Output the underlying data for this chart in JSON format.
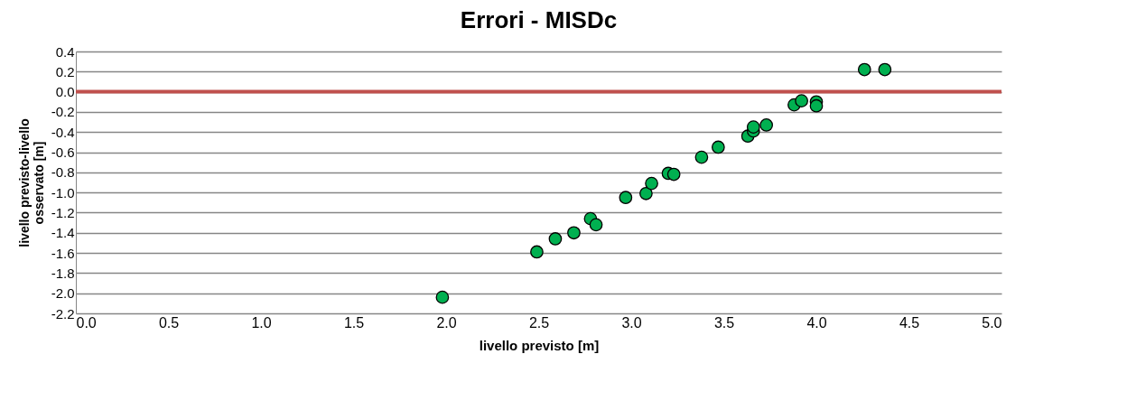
{
  "chart_data": {
    "type": "scatter",
    "title": "Errori - MISDc",
    "xlabel": "livello previsto [m]",
    "ylabel": "livello previsto-livello osservato [m]",
    "x": [
      1.98,
      2.49,
      2.59,
      2.69,
      2.78,
      2.81,
      2.97,
      3.08,
      3.11,
      3.2,
      3.23,
      3.38,
      3.47,
      3.63,
      3.66,
      3.66,
      3.73,
      3.88,
      3.92,
      4.0,
      4.0,
      4.26,
      4.37
    ],
    "series": [
      {
        "color": "#00b050",
        "values": [
          -2.04,
          -1.59,
          -1.46,
          -1.4,
          -1.26,
          -1.32,
          -1.05,
          -1.01,
          -0.91,
          -0.81,
          -0.82,
          -0.65,
          -0.55,
          -0.44,
          -0.39,
          -0.35,
          -0.33,
          -0.13,
          -0.09,
          -0.1,
          -0.14,
          0.22,
          0.22
        ]
      }
    ],
    "xlim": [
      0,
      5
    ],
    "xticks": [
      {
        "value": 0,
        "label": "0.0"
      },
      {
        "value": 0.5,
        "label": "0.5"
      },
      {
        "value": 1,
        "label": "1.0"
      },
      {
        "value": 1.5,
        "label": "1.5"
      },
      {
        "value": 2,
        "label": "2.0"
      },
      {
        "value": 2.5,
        "label": "2.5"
      },
      {
        "value": 3,
        "label": "3.0"
      },
      {
        "value": 3.5,
        "label": "3.5"
      },
      {
        "value": 4,
        "label": "4.0"
      },
      {
        "value": 4.5,
        "label": "4.5"
      },
      {
        "value": 5,
        "label": "5.0"
      }
    ],
    "ylim": [
      -2.2,
      0.4
    ],
    "yticks": [
      {
        "value": -2.2,
        "label": "-2.2"
      },
      {
        "value": -2,
        "label": "-2.0"
      },
      {
        "value": -1.8,
        "label": "-1.8"
      },
      {
        "value": -1.6,
        "label": "-1.6"
      },
      {
        "value": -1.4,
        "label": "-1.4"
      },
      {
        "value": -1.2,
        "label": "-1.2"
      },
      {
        "value": -1,
        "label": "-1.0"
      },
      {
        "value": -0.8,
        "label": "-0.8"
      },
      {
        "value": -0.6,
        "label": "-0.6"
      },
      {
        "value": -0.4,
        "label": "-0.4"
      },
      {
        "value": -0.2,
        "label": "-0.2"
      },
      {
        "value": 0,
        "label": "0.0"
      },
      {
        "value": 0.2,
        "label": "0.2"
      },
      {
        "value": 0.4,
        "label": "0.4"
      }
    ],
    "ref_lines": [
      {
        "axis": "y",
        "value": 0,
        "color": "#c0504d"
      }
    ],
    "grid": "y",
    "marker": "circle"
  }
}
